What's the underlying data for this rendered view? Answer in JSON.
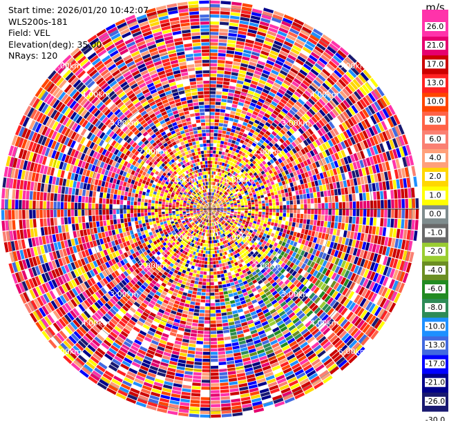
{
  "header": {
    "start_time": "Start time: 2026/01/20 10:42:07",
    "instrument": "WLS200s-181",
    "field": "Field: VEL",
    "elevation": "Elevation(deg): 35.00",
    "nrays": "NRays: 120"
  },
  "chart_data": {
    "type": "heatmap",
    "projection": "polar-ppi",
    "rings": [
      "1.00km",
      "2.00km",
      "3.00km",
      "4.00km",
      "5.00km"
    ],
    "nrays": 120,
    "grid": true,
    "colorbar": {
      "unit": "m/s",
      "ticks": [
        "26.0",
        "21.0",
        "17.0",
        "13.0",
        "10.0",
        "8.0",
        "6.0",
        "4.0",
        "2.0",
        "1.0",
        "0.0",
        "-1.0",
        "-2.0",
        "-4.0",
        "-6.0",
        "-8.0",
        "-10.0",
        "-13.0",
        "-17.0",
        "-21.0",
        "-26.0",
        "-30.0"
      ],
      "colors": [
        "#ff33aa",
        "#e6006e",
        "#cc0000",
        "#ff2222",
        "#ff4500",
        "#ff6347",
        "#fa8072",
        "#ffa07a",
        "#ffd700",
        "#ffff00",
        "#7f8c8d",
        "#696969",
        "#9acd32",
        "#6b8e23",
        "#228b22",
        "#2e8b57",
        "#1e90ff",
        "#4169e1",
        "#0000ff",
        "#00008b",
        "#191970"
      ]
    }
  }
}
